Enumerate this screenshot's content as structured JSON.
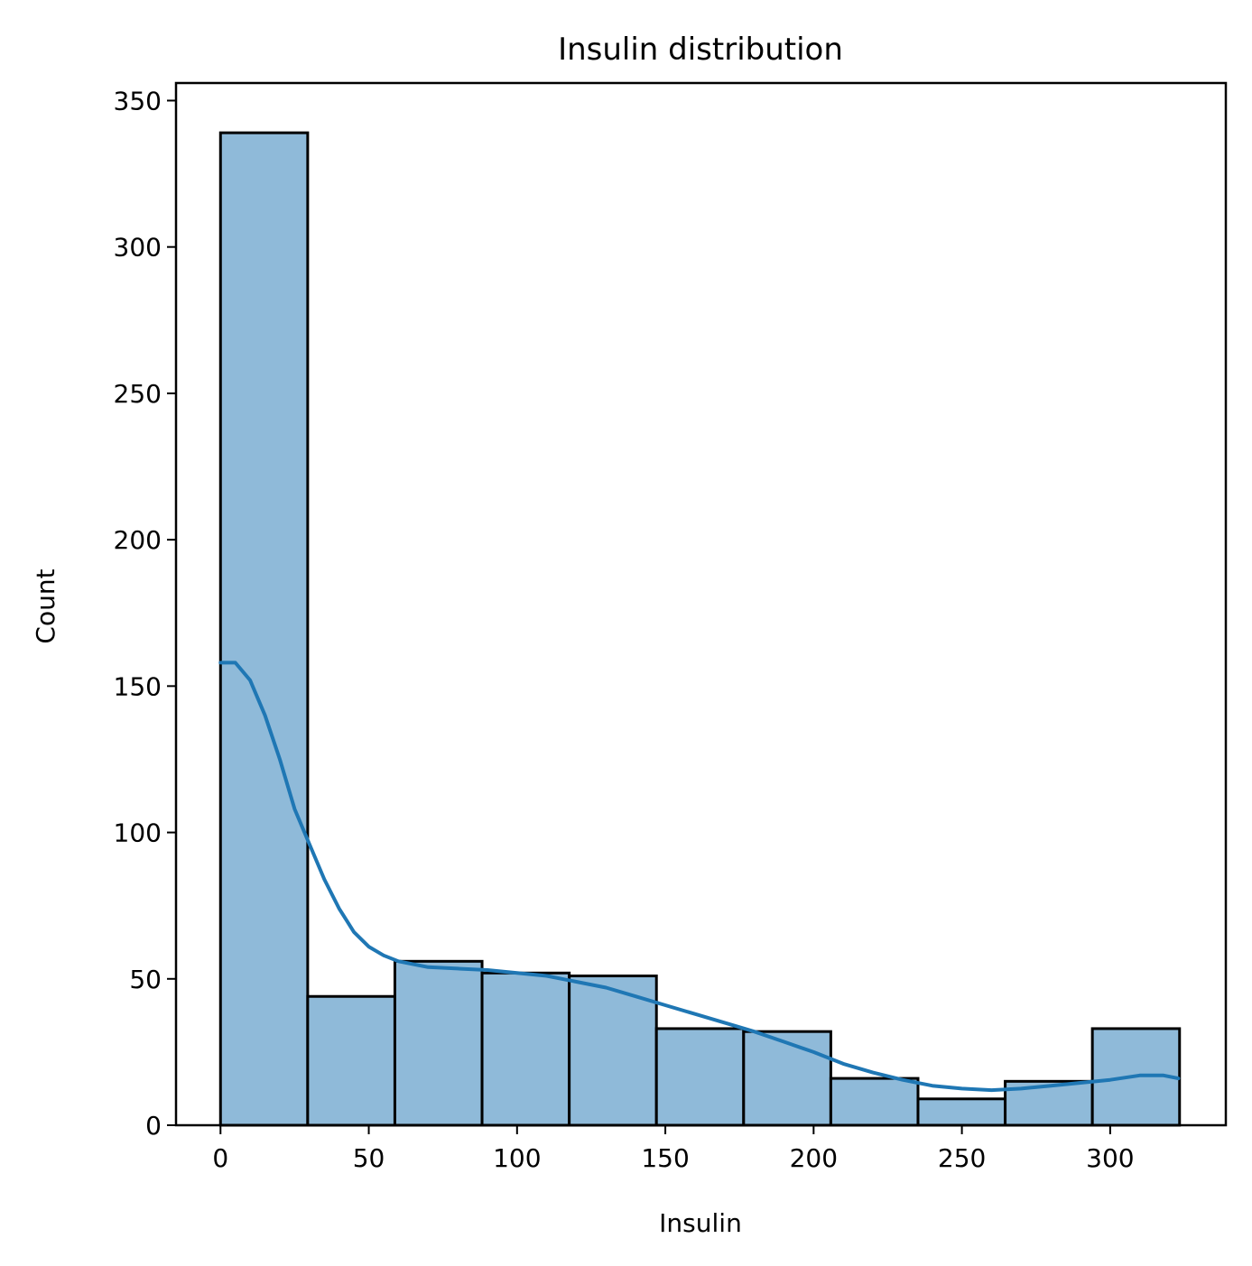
{
  "chart_data": {
    "type": "bar",
    "title": "Insulin distribution",
    "xlabel": "Insulin",
    "ylabel": "Count",
    "xlim": [
      -15,
      339
    ],
    "ylim": [
      0,
      356
    ],
    "xticks": [
      0,
      50,
      100,
      150,
      200,
      250,
      300
    ],
    "yticks": [
      0,
      50,
      100,
      150,
      200,
      250,
      300,
      350
    ],
    "bins": [
      {
        "x0": 0,
        "x1": 29.4,
        "count": 339
      },
      {
        "x0": 29.4,
        "x1": 58.8,
        "count": 44
      },
      {
        "x0": 58.8,
        "x1": 88.2,
        "count": 56
      },
      {
        "x0": 88.2,
        "x1": 117.6,
        "count": 52
      },
      {
        "x0": 117.6,
        "x1": 147.0,
        "count": 51
      },
      {
        "x0": 147.0,
        "x1": 176.4,
        "count": 33
      },
      {
        "x0": 176.4,
        "x1": 205.8,
        "count": 32
      },
      {
        "x0": 205.8,
        "x1": 235.2,
        "count": 16
      },
      {
        "x0": 235.2,
        "x1": 264.6,
        "count": 9
      },
      {
        "x0": 264.6,
        "x1": 294.0,
        "count": 15
      },
      {
        "x0": 294.0,
        "x1": 323.4,
        "count": 33
      }
    ],
    "kde": {
      "x": [
        0,
        5,
        10,
        15,
        20,
        25,
        30,
        35,
        40,
        45,
        50,
        55,
        60,
        65,
        70,
        80,
        90,
        100,
        110,
        120,
        130,
        140,
        150,
        160,
        170,
        180,
        190,
        200,
        210,
        220,
        230,
        240,
        250,
        260,
        270,
        280,
        290,
        300,
        310,
        318,
        323
      ],
      "y": [
        158,
        158,
        152,
        140,
        125,
        108,
        96,
        84,
        74,
        66,
        61,
        58,
        56,
        55,
        54,
        53.5,
        53,
        52,
        51,
        49,
        47,
        44,
        41,
        38,
        35,
        32,
        28.5,
        25,
        21,
        18,
        15.5,
        13.5,
        12.5,
        12,
        12.5,
        13.5,
        14.5,
        15.5,
        17,
        17,
        16
      ]
    },
    "bar_color": "#8fbad9",
    "line_color": "#1f77b4",
    "grid": false,
    "legend": "none"
  }
}
